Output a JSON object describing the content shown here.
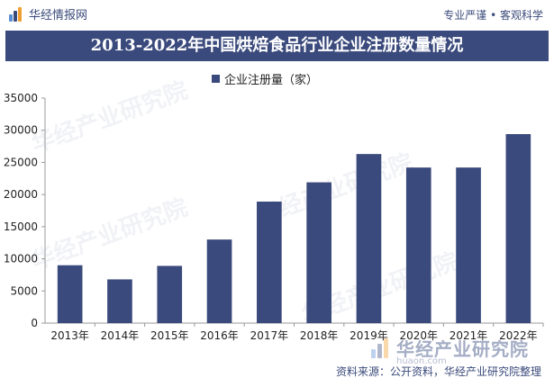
{
  "header": {
    "brand": "华经情报网",
    "tagline": "专业严谨 • 客观科学"
  },
  "colors": {
    "bar": "#3b4a7c",
    "title_bg": "#3b4a7c",
    "axis": "#999999"
  },
  "chart_data": {
    "type": "bar",
    "title": "2013-2022年中国烘焙食品行业企业注册数量情况",
    "categories": [
      "2013年",
      "2014年",
      "2015年",
      "2016年",
      "2017年",
      "2018年",
      "2019年",
      "2020年",
      "2021年",
      "2022年"
    ],
    "series": [
      {
        "name": "企业注册量（家）",
        "values": [
          9000,
          6800,
          8900,
          13000,
          18900,
          21900,
          26300,
          24200,
          24200,
          29400
        ]
      }
    ],
    "yticks": [
      0,
      5000,
      10000,
      15000,
      20000,
      25000,
      30000,
      35000
    ],
    "ylim": [
      0,
      35000
    ],
    "xlabel": "",
    "ylabel": "",
    "legend_position": "top-center",
    "grid": false
  },
  "footer": {
    "source": "资料来源：公开资料，华经产业研究院整理",
    "watermark_logo": "华经产业研究院",
    "watermark_url": "huaon.com"
  }
}
